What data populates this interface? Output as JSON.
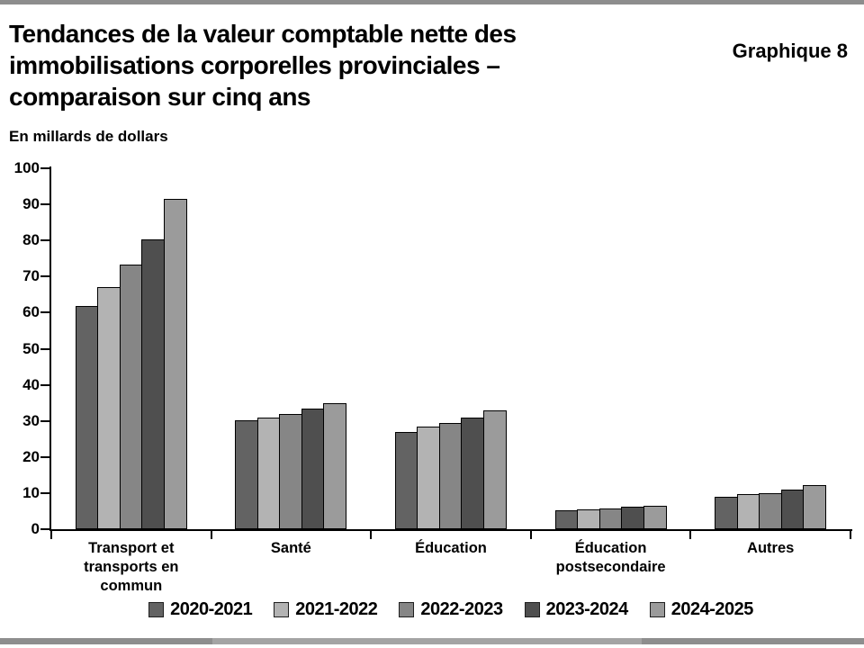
{
  "header": {
    "title": "Tendances de la valeur comptable nette des immobilisations corporelles provinciales – comparaison sur cinq ans",
    "title_lines": [
      "Tendances de la valeur comptable nette des",
      "immobilisations corporelles provinciales –",
      "comparaison sur cinq ans"
    ],
    "corner_label": "Graphique 8",
    "subtitle": "En millards de dollars"
  },
  "chart_data": {
    "type": "bar",
    "title": "Tendances de la valeur comptable nette des immobilisations corporelles provinciales – comparaison sur cinq ans",
    "unit_label": "En millards de dollars",
    "categories": [
      "Transport et transports en commun",
      "Santé",
      "Éducation",
      "Éducation postsecondaire",
      "Autres"
    ],
    "categories_lines": [
      [
        "Transport et",
        "transports en",
        "commun"
      ],
      [
        "Santé"
      ],
      [
        "Éducation"
      ],
      [
        "Éducation",
        "postsecondaire"
      ],
      [
        "Autres"
      ]
    ],
    "series": [
      {
        "name": "2020-2021",
        "color": "#636363",
        "values": [
          61.8,
          30.3,
          27.0,
          5.2,
          9.0
        ]
      },
      {
        "name": "2021-2022",
        "color": "#b3b3b3",
        "values": [
          67.0,
          31.0,
          28.5,
          5.5,
          9.7
        ]
      },
      {
        "name": "2022-2023",
        "color": "#868686",
        "values": [
          73.3,
          31.8,
          29.5,
          5.7,
          10.0
        ]
      },
      {
        "name": "2023-2024",
        "color": "#4f4f4f",
        "values": [
          80.3,
          33.3,
          31.0,
          6.2,
          10.9
        ]
      },
      {
        "name": "2024-2025",
        "color": "#9b9b9b",
        "values": [
          91.5,
          35.0,
          32.8,
          6.5,
          12.2
        ]
      }
    ],
    "ylim": [
      0,
      100
    ],
    "ytick_step": 10,
    "yticks": [
      0,
      10,
      20,
      30,
      40,
      50,
      60,
      70,
      80,
      90,
      100
    ],
    "grid": false,
    "legend_position": "bottom",
    "axis_color": "#000000"
  },
  "decor": {
    "frame_bar_color": "#8e8e8e",
    "frame_bar_light_color": "#a4a4a4",
    "background_color": "#ffffff"
  }
}
